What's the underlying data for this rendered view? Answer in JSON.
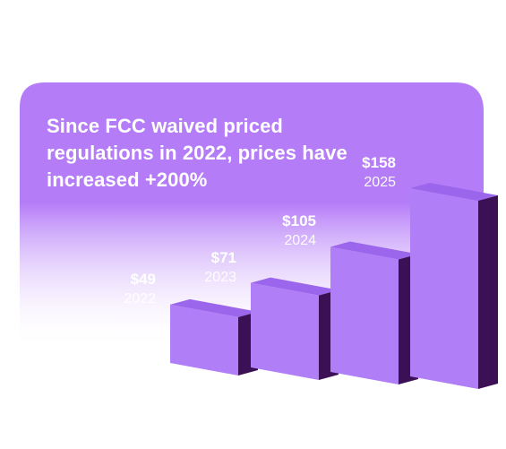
{
  "title": "Since FCC waived priced regulations in 2022, prices have increased +200%",
  "colors": {
    "card_top": "#b57cf8",
    "card_bottom": "#ffffff",
    "bar_front": "#b07ef7",
    "bar_top": "#9b65ec",
    "bar_side": "#3c1055"
  },
  "chart_data": {
    "type": "bar",
    "categories": [
      "2022",
      "2023",
      "2024",
      "2025"
    ],
    "values": [
      49,
      71,
      105,
      158
    ],
    "value_labels": [
      "$49",
      "$71",
      "$105",
      "$158"
    ],
    "title": "Since FCC waived priced regulations in 2022, prices have increased +200%",
    "xlabel": "",
    "ylabel": "",
    "grid": false,
    "style": "3d-isometric"
  }
}
